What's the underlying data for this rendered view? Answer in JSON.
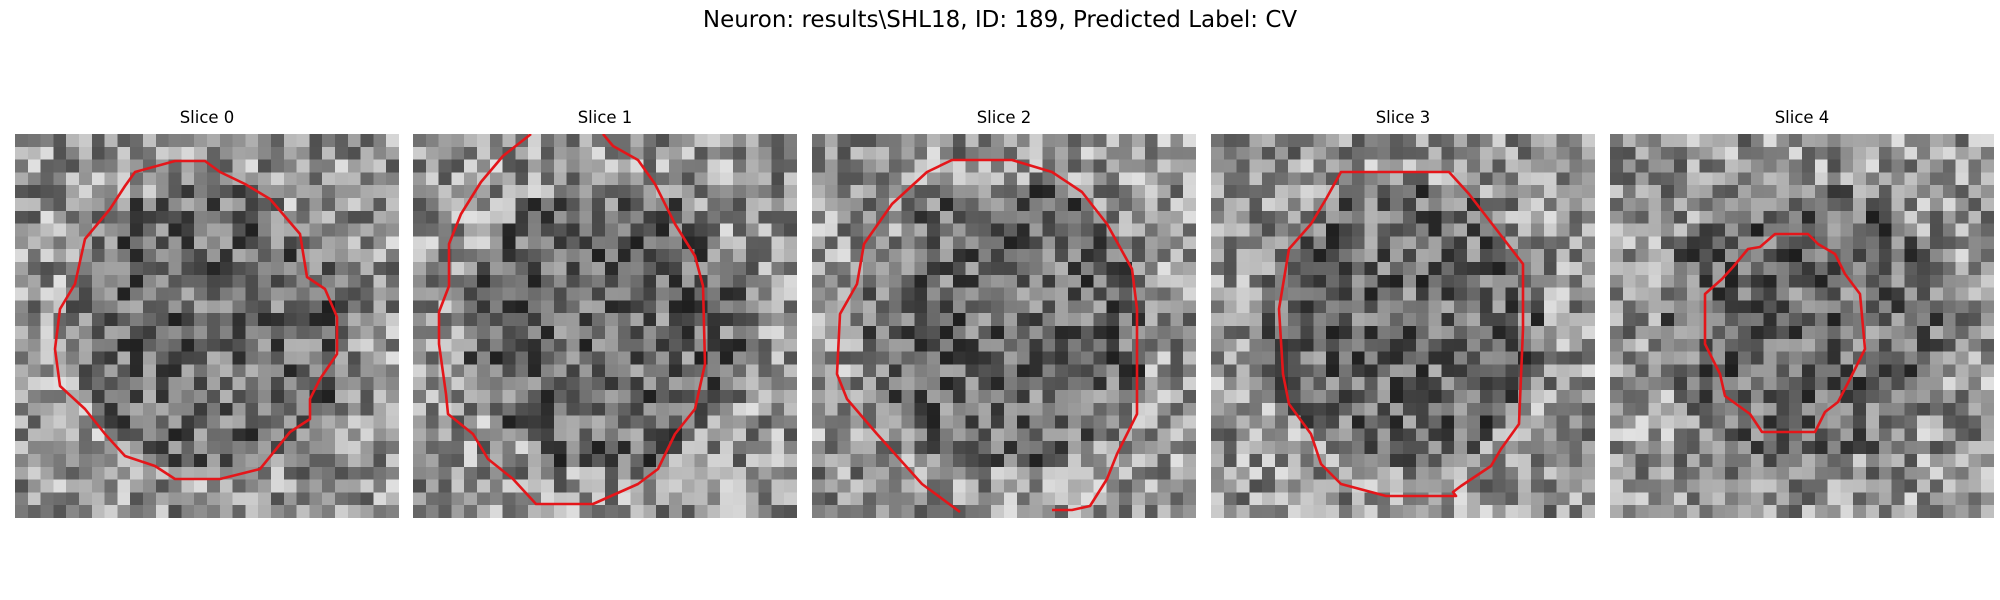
{
  "figure": {
    "title": "Neuron: results\\SHL18, ID: 189, Predicted Label: CV"
  },
  "panels": [
    {
      "title": "Slice 0"
    },
    {
      "title": "Slice 1"
    },
    {
      "title": "Slice 2"
    },
    {
      "title": "Slice 3"
    },
    {
      "title": "Slice 4"
    }
  ],
  "colors": {
    "contour": "#e4161a",
    "background": "#ffffff"
  }
}
